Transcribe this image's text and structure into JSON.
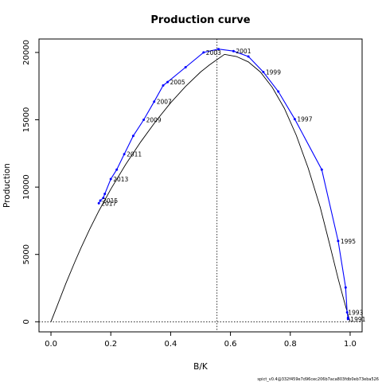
{
  "chart_data": {
    "type": "line",
    "title": "Production curve",
    "xlabel": "B/K",
    "ylabel": "Production",
    "xlim": [
      -0.04,
      1.04
    ],
    "ylim": [
      -750,
      21000
    ],
    "x_ticks": [
      0.0,
      0.2,
      0.4,
      0.6,
      0.8,
      1.0
    ],
    "x_tick_labels": [
      "0.0",
      "0.2",
      "0.4",
      "0.6",
      "0.8",
      "1.0"
    ],
    "y_ticks": [
      0,
      5000,
      10000,
      15000,
      20000
    ],
    "y_tick_labels": [
      "0",
      "5000",
      "10000",
      "15000",
      "20000"
    ],
    "grid": false,
    "series": [
      {
        "kind": "model-curve",
        "color": "#000000",
        "x": [
          0.0,
          0.02,
          0.05,
          0.08,
          0.1,
          0.13,
          0.16,
          0.2,
          0.25,
          0.3,
          0.35,
          0.4,
          0.45,
          0.5,
          0.53,
          0.555,
          0.58,
          0.62,
          0.66,
          0.7,
          0.74,
          0.78,
          0.82,
          0.86,
          0.9,
          0.93,
          0.96,
          0.98,
          0.995,
          1.0
        ],
        "y": [
          0,
          1150,
          2850,
          4450,
          5470,
          6900,
          8230,
          9850,
          11690,
          13360,
          14880,
          16260,
          17480,
          18550,
          19080,
          19470,
          19860,
          19700,
          19300,
          18550,
          17400,
          15850,
          13850,
          11400,
          8500,
          5900,
          3200,
          1550,
          350,
          0
        ]
      },
      {
        "kind": "observed",
        "color": "#0000ff",
        "x": [
          0.993,
          0.993,
          0.99,
          0.985,
          0.96,
          0.905,
          0.815,
          0.76,
          0.71,
          0.66,
          0.61,
          0.56,
          0.51,
          0.45,
          0.39,
          0.375,
          0.345,
          0.31,
          0.275,
          0.245,
          0.22,
          0.2,
          0.18,
          0.175,
          0.165,
          0.16
        ],
        "y": [
          200,
          300,
          700,
          2550,
          6000,
          11300,
          15050,
          17100,
          18550,
          19700,
          20100,
          20250,
          20000,
          18900,
          17800,
          17550,
          16350,
          15000,
          13800,
          12450,
          11300,
          10600,
          9500,
          9200,
          9000,
          8800
        ],
        "year_labels": [
          {
            "x": 0.993,
            "y": 200,
            "text": "1991"
          },
          {
            "x": 0.985,
            "y": 700,
            "text": "1993"
          },
          {
            "x": 0.96,
            "y": 6000,
            "text": "1995"
          },
          {
            "x": 0.815,
            "y": 15050,
            "text": "1997"
          },
          {
            "x": 0.71,
            "y": 18550,
            "text": "1999"
          },
          {
            "x": 0.61,
            "y": 20100,
            "text": "2001"
          },
          {
            "x": 0.51,
            "y": 20000,
            "text": "2003"
          },
          {
            "x": 0.39,
            "y": 17800,
            "text": "2005"
          },
          {
            "x": 0.345,
            "y": 16350,
            "text": "2007"
          },
          {
            "x": 0.31,
            "y": 15000,
            "text": "2009"
          },
          {
            "x": 0.245,
            "y": 12450,
            "text": "2011"
          },
          {
            "x": 0.2,
            "y": 10600,
            "text": "2013"
          },
          {
            "x": 0.165,
            "y": 9000,
            "text": "2015"
          },
          {
            "x": 0.16,
            "y": 8800,
            "text": "2017"
          }
        ]
      }
    ],
    "reference_lines": {
      "vertical_x": 0.555,
      "horizontal_y": 0,
      "style": "dotted"
    }
  },
  "footer": "spict_v0.4@332f459e7d96cec206b7aca803fdb0eb73eba526"
}
